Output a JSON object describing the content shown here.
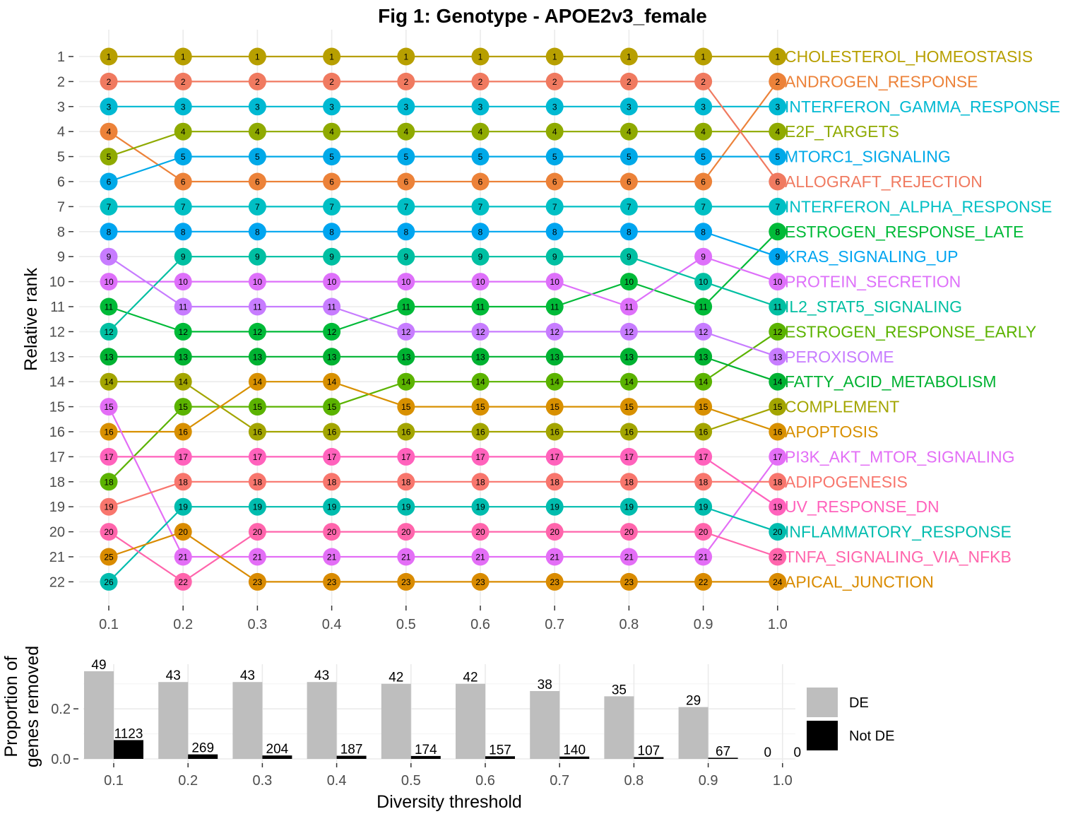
{
  "figure": {
    "title": "Fig 1: Genotype - APOE2v3_female"
  },
  "chart_data": [
    {
      "type": "line",
      "subtype": "bump",
      "title": "Fig 1: Genotype - APOE2v3_female",
      "xlabel": "",
      "ylabel": "Relative rank",
      "x": [
        0.1,
        0.2,
        0.3,
        0.4,
        0.5,
        0.6,
        0.7,
        0.8,
        0.9,
        1.0
      ],
      "x_tick_labels": [
        "0.1",
        "0.2",
        "0.3",
        "0.4",
        "0.5",
        "0.6",
        "0.7",
        "0.8",
        "0.9",
        "1.0"
      ],
      "y_tick_labels": [
        "1",
        "2",
        "3",
        "4",
        "5",
        "6",
        "7",
        "8",
        "9",
        "10",
        "11",
        "12",
        "13",
        "14",
        "15",
        "16",
        "17",
        "18",
        "19",
        "20",
        "21",
        "22"
      ],
      "ylim": [
        22,
        1
      ],
      "y_reversed": true,
      "grid": true,
      "legend": "none",
      "series": [
        {
          "name": "CHOLESTEROL_HOMEOSTASIS",
          "color": "#B79F00",
          "rank": [
            1,
            1,
            1,
            1,
            1,
            1,
            1,
            1,
            1,
            1
          ],
          "labels": [
            1,
            1,
            1,
            1,
            1,
            1,
            1,
            1,
            1,
            1
          ]
        },
        {
          "name": "ANDROGEN_RESPONSE",
          "color": "#EC8239",
          "rank": [
            4,
            6,
            6,
            6,
            6,
            6,
            6,
            6,
            6,
            2
          ],
          "labels": [
            4,
            6,
            6,
            6,
            6,
            6,
            6,
            6,
            6,
            2
          ]
        },
        {
          "name": "INTERFERON_GAMMA_RESPONSE",
          "color": "#00B9D2",
          "rank": [
            3,
            3,
            3,
            3,
            3,
            3,
            3,
            3,
            3,
            3
          ],
          "labels": [
            3,
            3,
            3,
            3,
            3,
            3,
            3,
            3,
            3,
            3
          ]
        },
        {
          "name": "E2F_TARGETS",
          "color": "#8FAA00",
          "rank": [
            5,
            4,
            4,
            4,
            4,
            4,
            4,
            4,
            4,
            4
          ],
          "labels": [
            5,
            4,
            4,
            4,
            4,
            4,
            4,
            4,
            4,
            4
          ]
        },
        {
          "name": "MTORC1_SIGNALING",
          "color": "#00A9E8",
          "rank": [
            6,
            5,
            5,
            5,
            5,
            5,
            5,
            5,
            5,
            5
          ],
          "labels": [
            6,
            5,
            5,
            5,
            5,
            5,
            5,
            5,
            5,
            5
          ]
        },
        {
          "name": "ALLOGRAFT_REJECTION",
          "color": "#F07A60",
          "rank": [
            2,
            2,
            2,
            2,
            2,
            2,
            2,
            2,
            2,
            6
          ],
          "labels": [
            2,
            2,
            2,
            2,
            2,
            2,
            2,
            2,
            2,
            6
          ]
        },
        {
          "name": "INTERFERON_ALPHA_RESPONSE",
          "color": "#00BFC4",
          "rank": [
            7,
            7,
            7,
            7,
            7,
            7,
            7,
            7,
            7,
            7
          ],
          "labels": [
            7,
            7,
            7,
            7,
            7,
            7,
            7,
            7,
            7,
            7
          ]
        },
        {
          "name": "ESTROGEN_RESPONSE_LATE",
          "color": "#00BA38",
          "rank": [
            11,
            12,
            12,
            12,
            11,
            11,
            11,
            10,
            11,
            8
          ],
          "labels": [
            11,
            12,
            12,
            12,
            11,
            11,
            11,
            10,
            11,
            8
          ]
        },
        {
          "name": "KRAS_SIGNALING_UP",
          "color": "#00A5F0",
          "rank": [
            8,
            8,
            8,
            8,
            8,
            8,
            8,
            8,
            8,
            9
          ],
          "labels": [
            8,
            8,
            8,
            8,
            8,
            8,
            8,
            8,
            8,
            9
          ]
        },
        {
          "name": "PROTEIN_SECRETION",
          "color": "#DE70FA",
          "rank": [
            10,
            10,
            10,
            10,
            10,
            10,
            10,
            11,
            9,
            10
          ],
          "labels": [
            10,
            10,
            10,
            10,
            10,
            10,
            10,
            11,
            9,
            10
          ]
        },
        {
          "name": "IL2_STAT5_SIGNALING",
          "color": "#00BFA2",
          "rank": [
            12,
            9,
            9,
            9,
            9,
            9,
            9,
            9,
            10,
            11
          ],
          "labels": [
            12,
            9,
            9,
            9,
            9,
            9,
            9,
            9,
            10,
            11
          ]
        },
        {
          "name": "ESTROGEN_RESPONSE_EARLY",
          "color": "#5BB300",
          "rank": [
            18,
            15,
            15,
            15,
            14,
            14,
            14,
            14,
            14,
            12
          ],
          "labels": [
            18,
            15,
            15,
            15,
            14,
            14,
            14,
            14,
            14,
            12
          ]
        },
        {
          "name": "PEROXISOME",
          "color": "#C77CFF",
          "rank": [
            9,
            11,
            11,
            11,
            12,
            12,
            12,
            12,
            12,
            13
          ],
          "labels": [
            9,
            11,
            11,
            11,
            12,
            12,
            12,
            12,
            12,
            13
          ]
        },
        {
          "name": "FATTY_ACID_METABOLISM",
          "color": "#00B232",
          "rank": [
            13,
            13,
            13,
            13,
            13,
            13,
            13,
            13,
            13,
            14
          ],
          "labels": [
            13,
            13,
            13,
            13,
            13,
            13,
            13,
            13,
            13,
            14
          ]
        },
        {
          "name": "COMPLEMENT",
          "color": "#A3A500",
          "rank": [
            14,
            14,
            16,
            16,
            16,
            16,
            16,
            16,
            16,
            15
          ],
          "labels": [
            14,
            14,
            16,
            16,
            16,
            16,
            16,
            16,
            16,
            15
          ]
        },
        {
          "name": "APOPTOSIS",
          "color": "#D89000",
          "rank": [
            16,
            16,
            14,
            14,
            15,
            15,
            15,
            15,
            15,
            16
          ],
          "labels": [
            16,
            16,
            14,
            14,
            15,
            15,
            15,
            15,
            15,
            16
          ]
        },
        {
          "name": "PI3K_AKT_MTOR_SIGNALING",
          "color": "#E36EF6",
          "rank": [
            15,
            21,
            21,
            21,
            21,
            21,
            21,
            21,
            21,
            17
          ],
          "labels": [
            15,
            21,
            21,
            21,
            21,
            21,
            21,
            21,
            21,
            17
          ]
        },
        {
          "name": "ADIPOGENESIS",
          "color": "#F8766D",
          "rank": [
            19,
            18,
            18,
            18,
            18,
            18,
            18,
            18,
            18,
            18
          ],
          "labels": [
            19,
            18,
            18,
            18,
            18,
            18,
            18,
            18,
            18,
            18
          ]
        },
        {
          "name": "UV_RESPONSE_DN",
          "color": "#FF62BC",
          "rank": [
            17,
            17,
            17,
            17,
            17,
            17,
            17,
            17,
            17,
            19
          ],
          "labels": [
            17,
            17,
            17,
            17,
            17,
            17,
            17,
            17,
            17,
            19
          ]
        },
        {
          "name": "INFLAMMATORY_RESPONSE",
          "color": "#00BCAE",
          "rank": [
            22,
            19,
            19,
            19,
            19,
            19,
            19,
            19,
            19,
            20
          ],
          "labels": [
            26,
            19,
            19,
            19,
            19,
            19,
            19,
            19,
            19,
            20
          ]
        },
        {
          "name": "TNFA_SIGNALING_VIA_NFKB",
          "color": "#FF65AC",
          "rank": [
            20,
            22,
            20,
            20,
            20,
            20,
            20,
            20,
            20,
            21
          ],
          "labels": [
            20,
            22,
            20,
            20,
            20,
            20,
            20,
            20,
            20,
            22
          ]
        },
        {
          "name": "APICAL_JUNCTION",
          "color": "#D98B00",
          "rank": [
            21,
            20,
            22,
            22,
            22,
            22,
            22,
            22,
            22,
            22
          ],
          "labels": [
            25,
            20,
            23,
            23,
            23,
            23,
            23,
            23,
            22,
            24
          ]
        }
      ]
    },
    {
      "type": "bar",
      "subtype": "grouped",
      "xlabel": "Diversity threshold",
      "ylabel": "Proportion of\ngenes removed",
      "ylabel_lines": [
        "Proportion of",
        "genes removed"
      ],
      "categories": [
        "0.1",
        "0.2",
        "0.3",
        "0.4",
        "0.5",
        "0.6",
        "0.7",
        "0.8",
        "0.9",
        "1.0"
      ],
      "y_tick_labels": [
        "0.0",
        "0.2"
      ],
      "ylim": [
        0,
        0.35
      ],
      "grid": true,
      "legend": "right",
      "series": [
        {
          "name": "DE",
          "color": "#bebebe",
          "values": [
            0.35,
            0.307,
            0.307,
            0.307,
            0.3,
            0.3,
            0.271,
            0.25,
            0.207,
            0.0
          ],
          "labels": [
            "49",
            "43",
            "43",
            "43",
            "42",
            "42",
            "38",
            "35",
            "29",
            "0"
          ]
        },
        {
          "name": "Not DE",
          "color": "#000000",
          "values": [
            0.075,
            0.018,
            0.0136,
            0.0125,
            0.0116,
            0.0105,
            0.0093,
            0.0071,
            0.0045,
            0.0
          ],
          "labels": [
            "1123",
            "269",
            "204",
            "187",
            "174",
            "157",
            "140",
            "107",
            "67",
            "0"
          ]
        }
      ]
    }
  ]
}
